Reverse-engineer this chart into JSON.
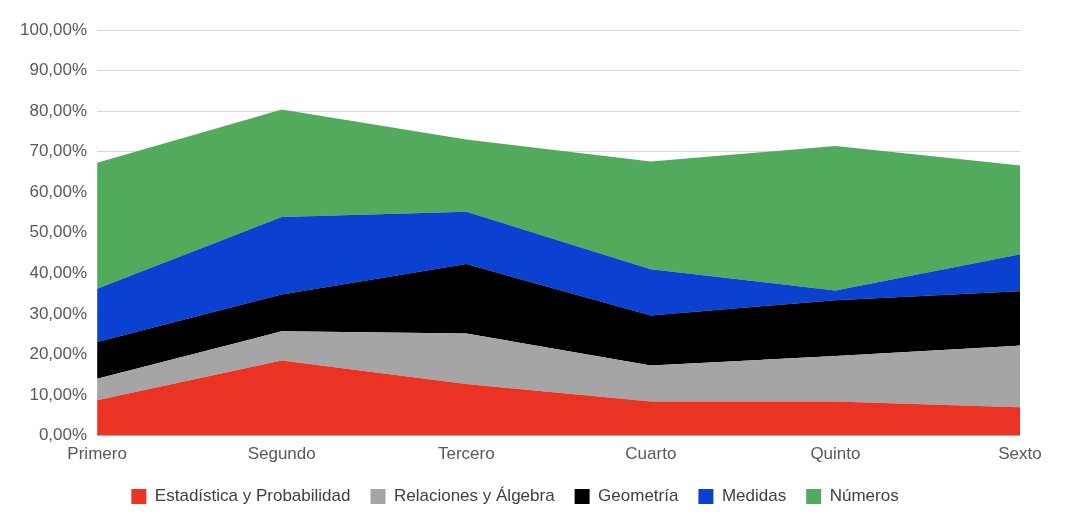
{
  "chart_data": {
    "type": "area",
    "stacked": true,
    "categories": [
      "Primero",
      "Segundo",
      "Tercero",
      "Cuarto",
      "Quinto",
      "Sexto"
    ],
    "series": [
      {
        "name": "Estadística y Probabilidad",
        "color": "#ea3323",
        "values": [
          8.7,
          18.5,
          12.7,
          8.4,
          8.4,
          7.0
        ]
      },
      {
        "name": "Relaciones y Álgebra",
        "color": "#a5a5a5",
        "values": [
          5.3,
          7.2,
          12.5,
          8.9,
          11.2,
          15.2
        ]
      },
      {
        "name": "Geometría",
        "color": "#000000",
        "values": [
          9.1,
          9.1,
          17.1,
          12.3,
          13.8,
          13.4
        ]
      },
      {
        "name": "Medidas",
        "color": "#0b41d1",
        "values": [
          13.1,
          19.1,
          12.9,
          11.4,
          2.4,
          9.1
        ]
      },
      {
        "name": "Números",
        "color": "#52ab5c",
        "values": [
          31.1,
          26.5,
          17.8,
          26.6,
          35.6,
          21.9
        ]
      }
    ],
    "ylim": [
      0,
      100
    ],
    "yticks": [
      {
        "value": 0,
        "label": "0,00%"
      },
      {
        "value": 10,
        "label": "10,00%"
      },
      {
        "value": 20,
        "label": "20,00%"
      },
      {
        "value": 30,
        "label": "30,00%"
      },
      {
        "value": 40,
        "label": "40,00%"
      },
      {
        "value": 50,
        "label": "50,00%"
      },
      {
        "value": 60,
        "label": "60,00%"
      },
      {
        "value": 70,
        "label": "70,00%"
      },
      {
        "value": 80,
        "label": "80,00%"
      },
      {
        "value": 90,
        "label": "90,00%"
      },
      {
        "value": 100,
        "label": "100,00%"
      }
    ],
    "grid": "y",
    "legend": "bottom"
  }
}
